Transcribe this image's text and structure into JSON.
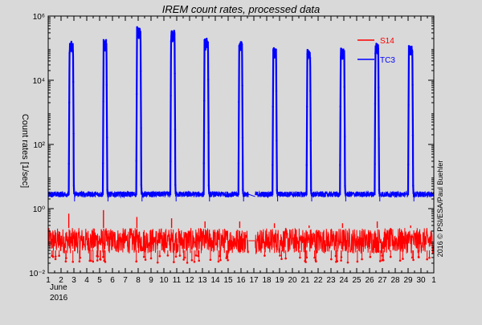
{
  "chart_data": {
    "type": "line",
    "title": "IREM count rates, processed data",
    "xlabel": "",
    "ylabel": "Count rates [1/sec]",
    "x_start_labels": [
      "June",
      "2016"
    ],
    "x_ticks": [
      "1",
      "2",
      "3",
      "4",
      "5",
      "6",
      "7",
      "8",
      "9",
      "10",
      "11",
      "12",
      "13",
      "14",
      "15",
      "16",
      "17",
      "18",
      "19",
      "20",
      "21",
      "22",
      "23",
      "24",
      "25",
      "26",
      "27",
      "28",
      "29",
      "30",
      "1"
    ],
    "xlim": [
      1,
      31
    ],
    "yscale": "log",
    "y_ticks": [
      {
        "value": 0.01,
        "label": "10⁻²"
      },
      {
        "value": 1,
        "label": "10⁰"
      },
      {
        "value": 100,
        "label": "10²"
      },
      {
        "value": 10000,
        "label": "10⁴"
      },
      {
        "value": 1000000,
        "label": "10⁶"
      }
    ],
    "ylim": [
      0.01,
      1000000
    ],
    "grid": false,
    "legend_position": "top-right",
    "credit": "2016 © PSI/ESA/Paul Buehler",
    "series": [
      {
        "name": "S14",
        "color": "#ff0000",
        "baseline_range": [
          0.04,
          0.25
        ],
        "spikes": [
          {
            "x": 2.6,
            "value": 0.7
          },
          {
            "x": 5.3,
            "value": 0.9
          },
          {
            "x": 7.9,
            "value": 0.55
          },
          {
            "x": 10.6,
            "value": 0.5
          },
          {
            "x": 13.2,
            "value": 0.4
          },
          {
            "x": 15.9,
            "value": 0.4
          },
          {
            "x": 18.6,
            "value": 0.35
          },
          {
            "x": 21.3,
            "value": 0.3
          },
          {
            "x": 23.9,
            "value": 0.35
          },
          {
            "x": 26.6,
            "value": 0.4
          },
          {
            "x": 29.2,
            "value": 0.3
          }
        ],
        "gap": [
          16.6,
          17.1
        ]
      },
      {
        "name": "TC3",
        "color": "#0000ff",
        "baseline": 2.8,
        "peaks": [
          {
            "x_start": 2.6,
            "x_end": 3.0,
            "value": 160000
          },
          {
            "x_start": 5.25,
            "x_end": 5.6,
            "value": 180000
          },
          {
            "x_start": 7.85,
            "x_end": 8.25,
            "value": 450000
          },
          {
            "x_start": 10.5,
            "x_end": 10.9,
            "value": 360000
          },
          {
            "x_start": 13.1,
            "x_end": 13.5,
            "value": 200000
          },
          {
            "x_start": 15.8,
            "x_end": 16.15,
            "value": 170000
          },
          {
            "x_start": 18.45,
            "x_end": 18.8,
            "value": 100000
          },
          {
            "x_start": 21.1,
            "x_end": 21.45,
            "value": 100000
          },
          {
            "x_start": 23.7,
            "x_end": 24.1,
            "value": 100000
          },
          {
            "x_start": 26.4,
            "x_end": 26.75,
            "value": 140000
          },
          {
            "x_start": 29.0,
            "x_end": 29.4,
            "value": 120000
          }
        ],
        "gap": [
          16.6,
          17.1
        ]
      }
    ]
  }
}
